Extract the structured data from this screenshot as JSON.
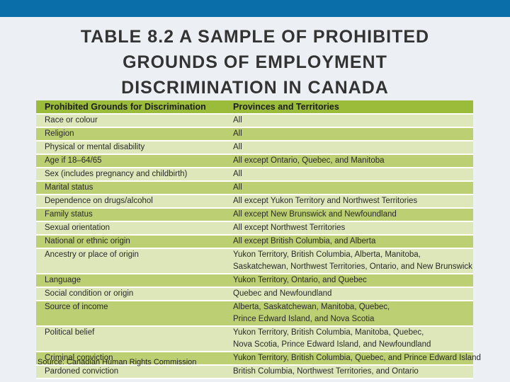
{
  "title": {
    "lines": [
      "TABLE 8.2 A SAMPLE OF PROHIBITED",
      "GROUNDS OF EMPLOYMENT",
      "DISCRIMINATION IN CANADA"
    ]
  },
  "table": {
    "headers": [
      "Prohibited Grounds for Discrimination",
      "Provinces and Territories"
    ],
    "rows": [
      {
        "ground": "Race or colour",
        "where": [
          "All"
        ]
      },
      {
        "ground": "Religion",
        "where": [
          "All"
        ]
      },
      {
        "ground": "Physical or mental disability",
        "where": [
          "All"
        ]
      },
      {
        "ground": "Age if 18–64/65",
        "where": [
          "All except Ontario, Quebec, and Manitoba"
        ]
      },
      {
        "ground": "Sex (includes pregnancy and childbirth)",
        "where": [
          "All"
        ]
      },
      {
        "ground": "Marital status",
        "where": [
          "All"
        ]
      },
      {
        "ground": "Dependence on drugs/alcohol",
        "where": [
          "All except Yukon Territory and Northwest Territories"
        ]
      },
      {
        "ground": "Family status",
        "where": [
          "All except New Brunswick and Newfoundland"
        ]
      },
      {
        "ground": "Sexual orientation",
        "where": [
          "All except Northwest Territories"
        ]
      },
      {
        "ground": "National or ethnic origin",
        "where": [
          "All except British Columbia, and Alberta"
        ]
      },
      {
        "ground": "Ancestry or place of origin",
        "where": [
          "Yukon Territory, British Columbia, Alberta, Manitoba,",
          "Saskatchewan, Northwest Territories, Ontario, and New Brunswick"
        ]
      },
      {
        "ground": "Language",
        "where": [
          "Yukon Territory, Ontario, and Quebec"
        ]
      },
      {
        "ground": "Social condition or origin",
        "where": [
          "Quebec and Newfoundland"
        ]
      },
      {
        "ground": "Source of income",
        "where": [
          "Alberta, Saskatchewan, Manitoba, Quebec,",
          "Prince Edward Island, and Nova Scotia"
        ]
      },
      {
        "ground": "Political belief",
        "where": [
          "Yukon Territory, British Columbia, Manitoba, Quebec,",
          "Nova Scotia, Prince Edward Island, and Newfoundland"
        ]
      },
      {
        "ground": "Criminal conviction",
        "where": [
          "Yukon Territory, British Columbia, Quebec, and Prince Edward Island"
        ]
      },
      {
        "ground": "Pardoned conviction",
        "where": [
          "British Columbia, Northwest Territories, and Ontario"
        ]
      }
    ],
    "source": "Source: Canadian Human Rights Commission"
  },
  "colors": {
    "top_bar": "#0a6fa8",
    "background": "#ecf0f4",
    "header_row": "#9bbb3a",
    "row_light": "#dde7b9",
    "row_dark": "#bccf72"
  }
}
